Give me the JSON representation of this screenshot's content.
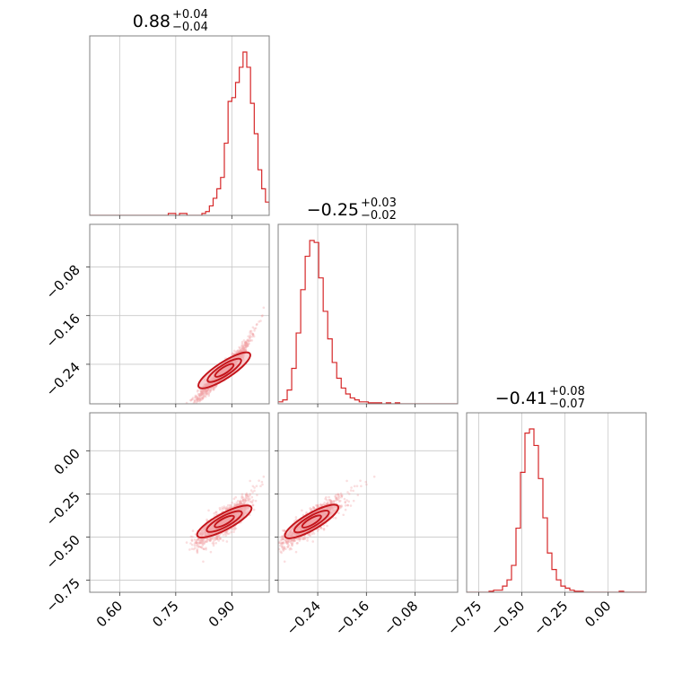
{
  "colors": {
    "series": "#d62728",
    "scatter": "#f2a0a2",
    "contour": "#c4161c"
  },
  "chart_data": {
    "type": "corner",
    "parameters": [
      {
        "title": {
          "median": "0.88",
          "upper": "+0.04",
          "lower": "−0.04"
        },
        "range": [
          0.52,
          1.0
        ],
        "ticks": [
          0.6,
          0.75,
          0.9
        ],
        "tick_labels": [
          "0.60",
          "0.75",
          "0.90"
        ],
        "hist_edges_start": 0.52,
        "hist_bin_width": 0.01,
        "hist_counts": [
          0,
          0,
          0,
          0,
          0,
          0,
          0,
          0,
          0,
          0,
          0,
          0,
          0,
          0,
          0,
          0,
          0,
          0,
          0,
          0,
          0,
          1,
          1,
          0,
          1,
          1,
          0,
          0,
          0,
          0,
          1,
          2,
          5,
          9,
          14,
          20,
          38,
          60,
          62,
          70,
          78,
          86,
          78,
          59,
          43,
          24,
          14,
          7,
          3
        ]
      },
      {
        "title": {
          "median": "−0.25",
          "upper": "+0.03",
          "lower": "−0.02"
        },
        "range": [
          -0.305,
          -0.01
        ],
        "ticks": [
          -0.24,
          -0.16,
          -0.08
        ],
        "tick_labels": [
          "−0.24",
          "−0.16",
          "−0.08"
        ],
        "hist_edges_start": -0.305,
        "hist_bin_width": 0.0074,
        "hist_counts": [
          1,
          2,
          7,
          18,
          36,
          58,
          75,
          83,
          82,
          64,
          47,
          33,
          21,
          13,
          8,
          5,
          3,
          2,
          1,
          1,
          0.5,
          0.5,
          0.5,
          0,
          0.5,
          0,
          0.5,
          0,
          0,
          0,
          0,
          0,
          0,
          0,
          0,
          0,
          0,
          0,
          0,
          0
        ]
      },
      {
        "title": {
          "median": "−0.41",
          "upper": "+0.08",
          "lower": "−0.07"
        },
        "range": [
          -0.82,
          0.22
        ],
        "ticks": [
          -0.75,
          -0.5,
          -0.25,
          0.0
        ],
        "tick_labels": [
          "−0.75",
          "−0.50",
          "−0.25",
          "0.00"
        ],
        "hist_edges_start": -0.82,
        "hist_bin_width": 0.026,
        "hist_counts": [
          0,
          0,
          0,
          0,
          0,
          0.5,
          1,
          1,
          3,
          6,
          13,
          31,
          58,
          77,
          79,
          71,
          55,
          36,
          19,
          11,
          6,
          3,
          2,
          1,
          0.5,
          0.5,
          0,
          0,
          0,
          0,
          0,
          0,
          0,
          0,
          0.5,
          0,
          0,
          0,
          0,
          0
        ]
      }
    ],
    "y_axes": {
      "row2": {
        "range": [
          -0.305,
          -0.01
        ],
        "ticks": [
          -0.24,
          -0.16,
          -0.08
        ],
        "tick_labels": [
          "−0.24",
          "−0.16",
          "−0.08"
        ]
      },
      "row3": {
        "range": [
          -0.82,
          0.22
        ],
        "ticks": [
          -0.75,
          -0.5,
          -0.25,
          0.0
        ],
        "tick_labels": [
          "−0.75",
          "−0.50",
          "−0.25",
          "0.00"
        ]
      }
    },
    "grid": true
  }
}
